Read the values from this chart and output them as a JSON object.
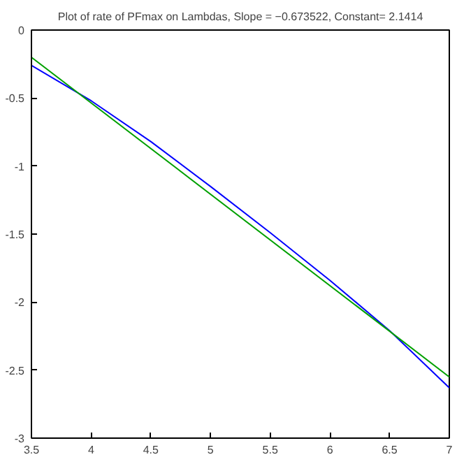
{
  "chart_data": {
    "type": "line",
    "title": "Plot of rate of PFmax on Lambdas, Slope = −0.673522, Constant= 2.1414",
    "xlim": [
      3.5,
      7
    ],
    "ylim": [
      -3,
      0
    ],
    "xticks": [
      3.5,
      4,
      4.5,
      5,
      5.5,
      6,
      6.5,
      7
    ],
    "yticks": [
      -3,
      -2.5,
      -2,
      -1.5,
      -1,
      -0.5,
      0
    ],
    "series": [
      {
        "color": "#0000ff",
        "x": [
          3.5,
          4.0,
          4.5,
          5.0,
          5.5,
          6.0,
          6.5,
          7.0
        ],
        "values": [
          -0.26,
          -0.52,
          -0.82,
          -1.15,
          -1.49,
          -1.84,
          -2.21,
          -2.63
        ]
      },
      {
        "color": "#00a000",
        "x": [
          3.5,
          7.0
        ],
        "values": [
          -0.2,
          -2.55
        ]
      }
    ]
  }
}
